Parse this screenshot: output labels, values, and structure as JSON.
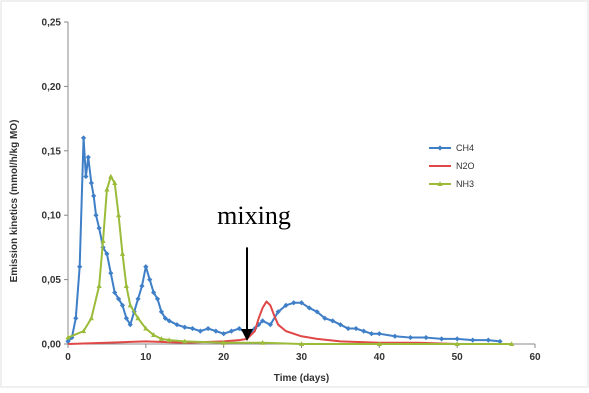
{
  "chart_data": {
    "type": "line",
    "xlabel": "Time (days)",
    "ylabel": "Emission kinetics (mmol/h/kg MO)",
    "xlim": [
      0,
      60
    ],
    "ylim": [
      0,
      0.25
    ],
    "x_ticks": [
      "0",
      "10",
      "20",
      "30",
      "40",
      "50",
      "60"
    ],
    "y_ticks": [
      "0,00",
      "0,05",
      "0,10",
      "0,15",
      "0,20",
      "0,25"
    ],
    "grid": false,
    "legend_position": "right",
    "annotation": {
      "text": "mixing",
      "arrow_x": 23,
      "arrow_y_top": 0.075,
      "arrow_y_bottom": 0.0
    },
    "series": [
      {
        "name": "CH4",
        "color": "#3f7fc7",
        "marker": "diamond",
        "x": [
          0,
          0.5,
          1,
          1.5,
          2,
          2.3,
          2.6,
          3,
          3.3,
          3.6,
          4,
          4.5,
          5,
          5.5,
          6,
          6.5,
          7,
          7.5,
          8,
          8.5,
          9,
          9.5,
          10,
          10.5,
          11,
          11.5,
          12,
          12.5,
          13,
          14,
          15,
          16,
          17,
          18,
          19,
          20,
          21,
          22,
          23,
          23.5,
          24,
          24.5,
          25,
          26,
          27,
          28,
          29,
          30,
          31,
          32,
          33,
          34,
          35,
          36,
          37,
          38,
          39,
          40,
          42,
          44,
          46,
          48,
          50,
          52,
          54,
          55.5
        ],
        "values": [
          0.002,
          0.005,
          0.02,
          0.06,
          0.16,
          0.13,
          0.145,
          0.125,
          0.115,
          0.1,
          0.09,
          0.075,
          0.07,
          0.055,
          0.04,
          0.035,
          0.03,
          0.02,
          0.015,
          0.025,
          0.035,
          0.045,
          0.06,
          0.05,
          0.04,
          0.035,
          0.025,
          0.02,
          0.018,
          0.015,
          0.013,
          0.012,
          0.01,
          0.012,
          0.01,
          0.008,
          0.01,
          0.012,
          0.008,
          0.01,
          0.012,
          0.015,
          0.018,
          0.015,
          0.025,
          0.03,
          0.032,
          0.032,
          0.028,
          0.025,
          0.02,
          0.018,
          0.015,
          0.012,
          0.012,
          0.01,
          0.008,
          0.008,
          0.006,
          0.005,
          0.005,
          0.004,
          0.004,
          0.003,
          0.003,
          0.002
        ]
      },
      {
        "name": "N2O",
        "color": "#e04848",
        "marker": "none",
        "x": [
          0,
          5,
          10,
          15,
          20,
          22,
          23,
          24,
          24.5,
          25,
          25.5,
          26,
          26.5,
          27,
          28,
          30,
          32,
          35,
          40,
          45,
          50,
          56
        ],
        "values": [
          0,
          0.001,
          0.002,
          0.001,
          0.002,
          0.003,
          0.004,
          0.01,
          0.02,
          0.028,
          0.033,
          0.03,
          0.022,
          0.015,
          0.01,
          0.006,
          0.004,
          0.002,
          0.001,
          0.001,
          0.0,
          0.0
        ]
      },
      {
        "name": "NH3",
        "color": "#9bbb3a",
        "marker": "triangle",
        "x": [
          0,
          2,
          3,
          4,
          4.5,
          5,
          5.5,
          6,
          6.5,
          7,
          7.5,
          8,
          9,
          10,
          11,
          12,
          13,
          15,
          20,
          25,
          30,
          40,
          50,
          57
        ],
        "values": [
          0.005,
          0.01,
          0.02,
          0.045,
          0.08,
          0.12,
          0.13,
          0.125,
          0.1,
          0.07,
          0.045,
          0.03,
          0.02,
          0.012,
          0.007,
          0.004,
          0.003,
          0.002,
          0.001,
          0.001,
          0.0,
          0.0,
          0.0,
          0.0
        ]
      }
    ]
  }
}
